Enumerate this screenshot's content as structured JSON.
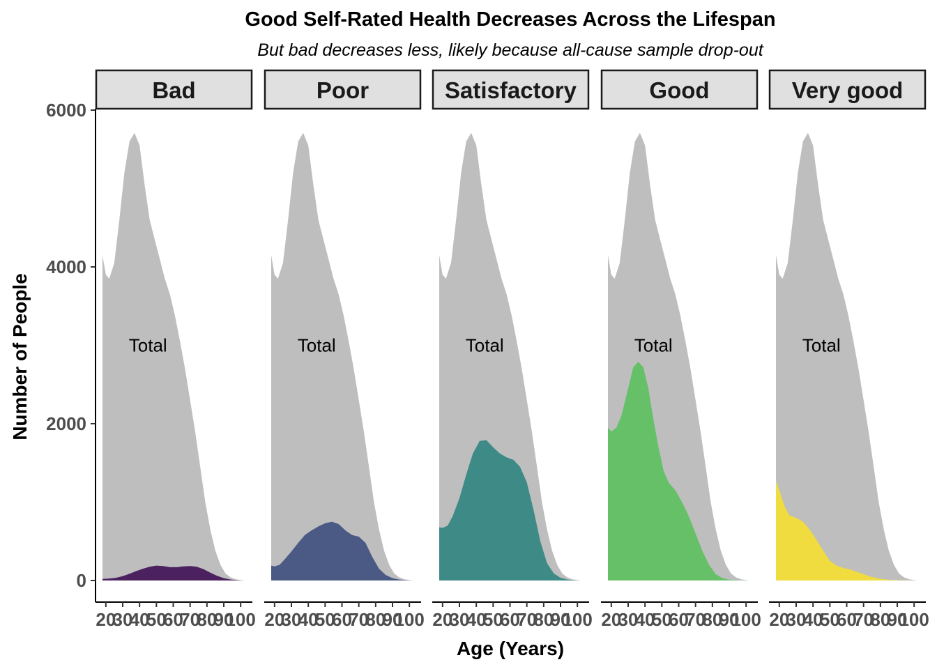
{
  "chart_data": {
    "type": "area",
    "title": "Good Self-Rated Health Decreases Across the Lifespan",
    "subtitle": "But bad decreases less, likely because all-cause sample drop-out",
    "xlabel": "Age (Years)",
    "ylabel": "Number of People",
    "xlim": [
      18,
      102
    ],
    "ylim": [
      0,
      6000
    ],
    "x_ticks": [
      20,
      30,
      40,
      50,
      60,
      70,
      80,
      90,
      100
    ],
    "y_ticks": [
      0,
      2000,
      4000,
      6000
    ],
    "grid": false,
    "annotation": "Total",
    "annotation_position": {
      "x": 45,
      "y": 3000
    },
    "facets": [
      "Bad",
      "Poor",
      "Satisfactory",
      "Good",
      "Very good"
    ],
    "total": {
      "color": "#bebebe",
      "x": [
        18,
        20,
        22,
        25,
        28,
        31,
        34,
        37,
        40,
        43,
        46,
        49,
        52,
        55,
        58,
        61,
        64,
        67,
        70,
        73,
        76,
        79,
        82,
        85,
        88,
        91,
        94,
        97,
        100,
        102
      ],
      "values": [
        4150,
        3900,
        3850,
        4050,
        4600,
        5200,
        5600,
        5710,
        5550,
        5050,
        4600,
        4350,
        4100,
        3850,
        3650,
        3380,
        3050,
        2700,
        2300,
        1900,
        1450,
        1000,
        650,
        380,
        200,
        90,
        40,
        15,
        5,
        0
      ]
    },
    "series": [
      {
        "name": "Bad",
        "color": "#4b2160",
        "x": [
          18,
          22,
          26,
          30,
          34,
          38,
          42,
          46,
          50,
          54,
          58,
          62,
          66,
          70,
          74,
          78,
          82,
          86,
          90,
          94,
          98,
          102
        ],
        "values": [
          20,
          25,
          35,
          55,
          85,
          120,
          150,
          175,
          190,
          185,
          170,
          170,
          180,
          185,
          175,
          145,
          100,
          60,
          30,
          12,
          4,
          0
        ]
      },
      {
        "name": "Poor",
        "color": "#4a5a85",
        "x": [
          18,
          20,
          23,
          26,
          30,
          34,
          38,
          42,
          46,
          50,
          54,
          58,
          62,
          66,
          70,
          74,
          78,
          82,
          86,
          90,
          94,
          98,
          102
        ],
        "values": [
          190,
          180,
          200,
          270,
          370,
          480,
          580,
          640,
          690,
          730,
          750,
          720,
          640,
          580,
          560,
          480,
          300,
          150,
          70,
          30,
          12,
          4,
          0
        ]
      },
      {
        "name": "Satisfactory",
        "color": "#3d8a86",
        "x": [
          18,
          20,
          23,
          26,
          30,
          34,
          38,
          42,
          46,
          50,
          54,
          58,
          62,
          66,
          70,
          74,
          78,
          82,
          86,
          90,
          94,
          98,
          102
        ],
        "values": [
          680,
          670,
          700,
          820,
          1050,
          1350,
          1620,
          1780,
          1790,
          1700,
          1620,
          1570,
          1540,
          1450,
          1250,
          900,
          500,
          220,
          90,
          35,
          12,
          4,
          0
        ]
      },
      {
        "name": "Good",
        "color": "#66c068",
        "x": [
          18,
          20,
          23,
          26,
          30,
          33,
          36,
          39,
          42,
          45,
          48,
          51,
          54,
          58,
          62,
          66,
          70,
          74,
          78,
          82,
          86,
          90,
          94,
          98,
          102
        ],
        "values": [
          1950,
          1900,
          1950,
          2100,
          2450,
          2720,
          2790,
          2720,
          2450,
          2050,
          1700,
          1400,
          1250,
          1150,
          1000,
          820,
          600,
          380,
          200,
          80,
          30,
          10,
          4,
          1,
          0
        ]
      },
      {
        "name": "Very good",
        "color": "#f0dc3e",
        "x": [
          18,
          20,
          23,
          26,
          30,
          34,
          38,
          42,
          46,
          50,
          54,
          58,
          62,
          66,
          70,
          74,
          78,
          82,
          86,
          90,
          94,
          98,
          102
        ],
        "values": [
          1270,
          1150,
          950,
          830,
          800,
          750,
          650,
          520,
          380,
          250,
          190,
          160,
          140,
          110,
          80,
          50,
          30,
          15,
          8,
          4,
          2,
          1,
          0
        ]
      }
    ]
  }
}
